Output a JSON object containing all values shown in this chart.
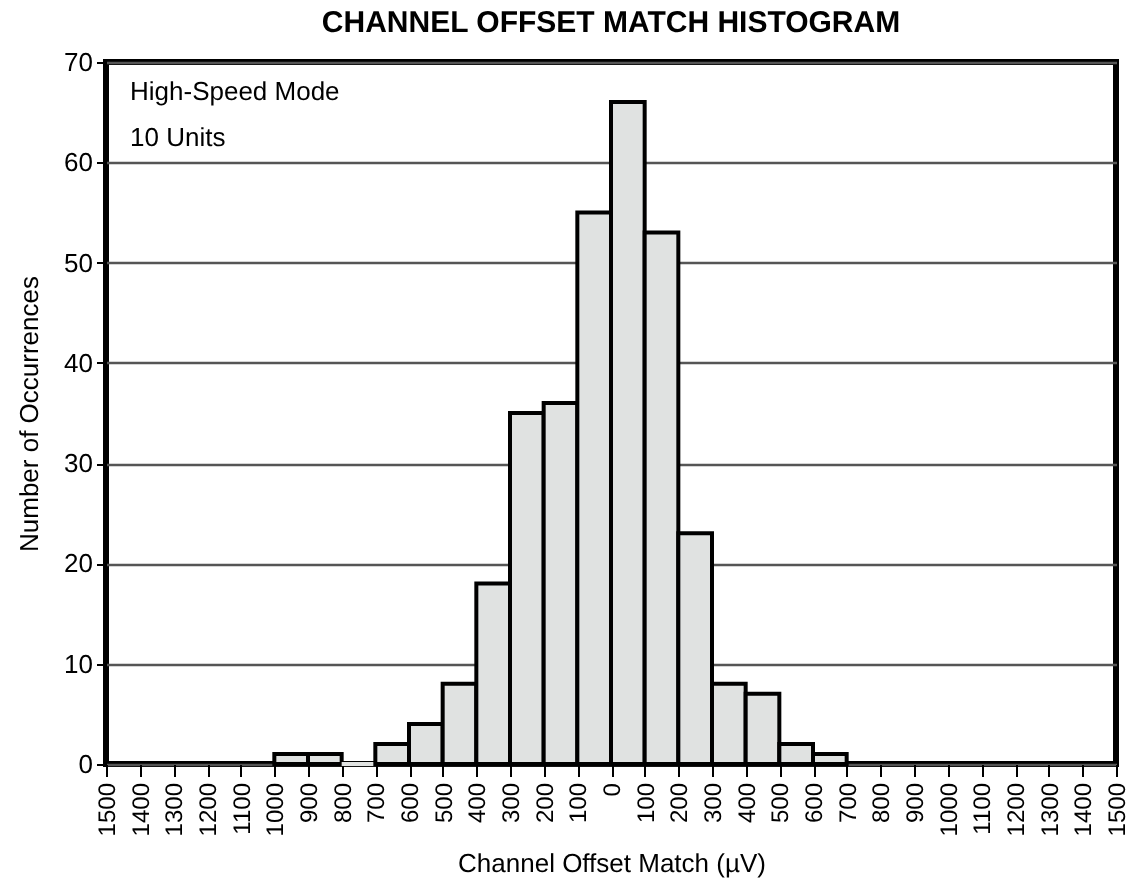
{
  "chart_data": {
    "type": "histogram",
    "title": "CHANNEL OFFSET MATCH HISTOGRAM",
    "xlabel": "Channel Offset Match (µV)",
    "ylabel": "Number of Occurrences",
    "annotations": [
      "High-Speed Mode",
      "10 Units"
    ],
    "bins": [
      -1000,
      -900,
      -800,
      -700,
      -600,
      -500,
      -400,
      -300,
      -200,
      -100,
      0,
      100,
      200,
      300,
      400,
      500,
      600,
      700
    ],
    "values": [
      1,
      1,
      0,
      2,
      4,
      8,
      18,
      35,
      36,
      55,
      66,
      53,
      23,
      8,
      7,
      2,
      1
    ],
    "color": "#e0e2e1",
    "xlim": [
      -1500,
      1500
    ],
    "xticks": [
      {
        "value": -1500,
        "label": "1500"
      },
      {
        "value": -1400,
        "label": "1400"
      },
      {
        "value": -1300,
        "label": "1300"
      },
      {
        "value": -1200,
        "label": "1200"
      },
      {
        "value": -1100,
        "label": "1100"
      },
      {
        "value": -1000,
        "label": "1000"
      },
      {
        "value": -900,
        "label": "900"
      },
      {
        "value": -800,
        "label": "800"
      },
      {
        "value": -700,
        "label": "700"
      },
      {
        "value": -600,
        "label": "600"
      },
      {
        "value": -500,
        "label": "500"
      },
      {
        "value": -400,
        "label": "400"
      },
      {
        "value": -300,
        "label": "300"
      },
      {
        "value": -200,
        "label": "200"
      },
      {
        "value": -100,
        "label": "100"
      },
      0,
      100,
      200,
      300,
      400,
      500,
      600,
      700,
      800,
      900,
      1000,
      1100,
      1200,
      1300,
      1400,
      1500
    ],
    "ylim": [
      0,
      70
    ],
    "yticks": [
      0,
      10,
      20,
      30,
      40,
      50,
      60,
      70
    ],
    "grid": "y"
  }
}
